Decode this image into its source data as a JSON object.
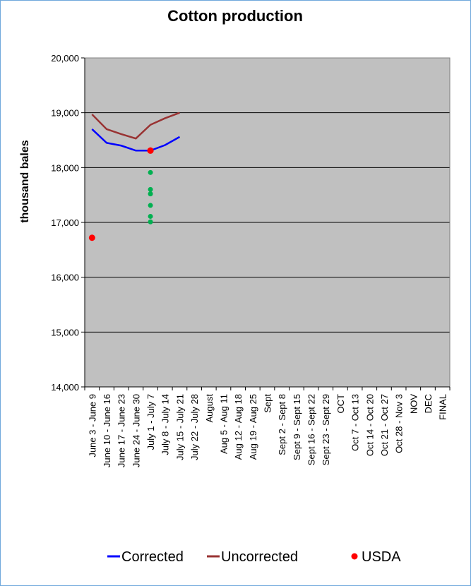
{
  "chart_data": {
    "type": "line",
    "title": "Cotton production",
    "y_label": "thousand bales",
    "categories": [
      "June 3 - June 9",
      "June 10 - June 16",
      "June 17 - June 23",
      "June 24 - June 30",
      "July 1 - July 7",
      "July 8 - July 14",
      "July 15 - July 21",
      "July 22 - July 28",
      "August",
      "Aug 5 - Aug 11",
      "Aug 12 - Aug 18",
      "Aug 19 - Aug 25",
      "Sept",
      "Sept 2 - Sept 8",
      "Sept 9 - Sept 15",
      "Sept 16 - Sept 22",
      "Sept 23 - Sept 29",
      "OCT",
      "Oct 7 - Oct 13",
      "Oct 14 - Oct 20",
      "Oct 21 - Oct 27",
      "Oct 28 - Nov 3",
      "NOV",
      "DEC",
      "FINAL"
    ],
    "series": [
      {
        "name": "Corrected",
        "color": "#0000ff",
        "style": "line",
        "values": [
          18700,
          18450,
          18400,
          18310,
          18310,
          18410,
          18560,
          null,
          null,
          null,
          null,
          null,
          null,
          null,
          null,
          null,
          null,
          null,
          null,
          null,
          null,
          null,
          null,
          null,
          null
        ]
      },
      {
        "name": "Uncorrected",
        "color": "#993333",
        "style": "line",
        "values": [
          18970,
          18700,
          18610,
          18530,
          18780,
          18900,
          19000,
          null,
          null,
          null,
          null,
          null,
          null,
          null,
          null,
          null,
          null,
          null,
          null,
          null,
          null,
          null,
          null,
          null,
          null
        ]
      },
      {
        "name": "USDA",
        "color": "#ff0000",
        "style": "marker",
        "values": [
          16720,
          null,
          null,
          null,
          18310,
          null,
          null,
          null,
          null,
          null,
          null,
          null,
          null,
          null,
          null,
          null,
          null,
          null,
          null,
          null,
          null,
          null,
          null,
          null,
          null
        ]
      }
    ],
    "extra_points": {
      "color": "#00b050",
      "x": [
        "July 1 - July 7",
        "July 1 - July 7",
        "July 1 - July 7",
        "July 1 - July 7",
        "July 1 - July 7",
        "July 1 - July 7"
      ],
      "values": [
        17910,
        17600,
        17520,
        17310,
        17110,
        17010
      ]
    },
    "ylim": [
      14000,
      20000
    ],
    "yticks": [
      {
        "value": 14000,
        "label": "14,000"
      },
      {
        "value": 15000,
        "label": "15,000"
      },
      {
        "value": 16000,
        "label": "16,000"
      },
      {
        "value": 17000,
        "label": "17,000"
      },
      {
        "value": 18000,
        "label": "18,000"
      },
      {
        "value": 19000,
        "label": "19,000"
      },
      {
        "value": 20000,
        "label": "20,000"
      }
    ],
    "grid": true,
    "legend": "bottom",
    "plot_background": "#c0c0c0"
  }
}
